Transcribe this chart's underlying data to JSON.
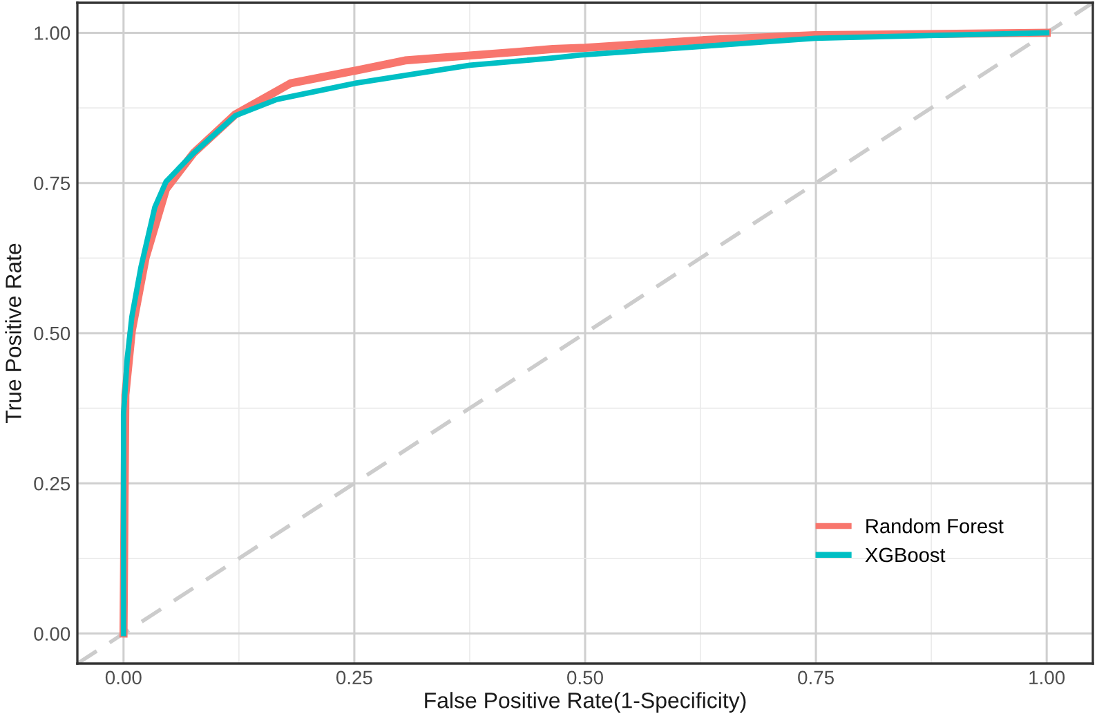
{
  "chart_data": {
    "type": "line",
    "xlabel": "False Positive Rate(1-Specificity)",
    "ylabel": "True Positive Rate",
    "xlim": [
      -0.05,
      1.05
    ],
    "ylim": [
      -0.05,
      1.05
    ],
    "xticks": [
      {
        "value": 0,
        "label": "0.00"
      },
      {
        "value": 0.125,
        "label": null
      },
      {
        "value": 0.25,
        "label": "0.25"
      },
      {
        "value": 0.375,
        "label": null
      },
      {
        "value": 0.5,
        "label": "0.50"
      },
      {
        "value": 0.625,
        "label": null
      },
      {
        "value": 0.75,
        "label": "0.75"
      },
      {
        "value": 0.875,
        "label": null
      },
      {
        "value": 1,
        "label": "1.00"
      }
    ],
    "yticks": [
      {
        "value": 0,
        "label": "0.00"
      },
      {
        "value": 0.125,
        "label": null
      },
      {
        "value": 0.25,
        "label": "0.25"
      },
      {
        "value": 0.375,
        "label": null
      },
      {
        "value": 0.5,
        "label": "0.50"
      },
      {
        "value": 0.625,
        "label": null
      },
      {
        "value": 0.75,
        "label": "0.75"
      },
      {
        "value": 0.875,
        "label": null
      },
      {
        "value": 1,
        "label": "1.00"
      }
    ],
    "grid": true,
    "legend": "bottom right",
    "marker": "none",
    "series": [
      {
        "color": "#cccccc",
        "line_style": "dashed",
        "x": [
          -0.05,
          1.05
        ],
        "values": [
          -0.05,
          1.05
        ]
      },
      {
        "name": "Random Forest",
        "color": "#f8766d",
        "line_style": "solid",
        "x": [
          0,
          0.002,
          0.009,
          0.024,
          0.046,
          0.076,
          0.121,
          0.181,
          0.251,
          0.305,
          0.425,
          0.465,
          0.5,
          0.629,
          0.749,
          1
        ],
        "values": [
          0,
          0.397,
          0.504,
          0.626,
          0.74,
          0.8,
          0.864,
          0.916,
          0.937,
          0.954,
          0.968,
          0.973,
          0.975,
          0.988,
          0.996,
          1
        ]
      },
      {
        "name": "XGBoost",
        "color": "#00bfc4",
        "line_style": "solid",
        "x": [
          0,
          0,
          0.004,
          0.009,
          0.019,
          0.034,
          0.046,
          0.076,
          0.121,
          0.166,
          0.251,
          0.375,
          0.465,
          0.495,
          0.624,
          0.749,
          1
        ],
        "values": [
          0,
          0.366,
          0.458,
          0.527,
          0.611,
          0.71,
          0.752,
          0.8,
          0.862,
          0.889,
          0.916,
          0.946,
          0.958,
          0.963,
          0.977,
          0.991,
          1
        ]
      }
    ]
  }
}
